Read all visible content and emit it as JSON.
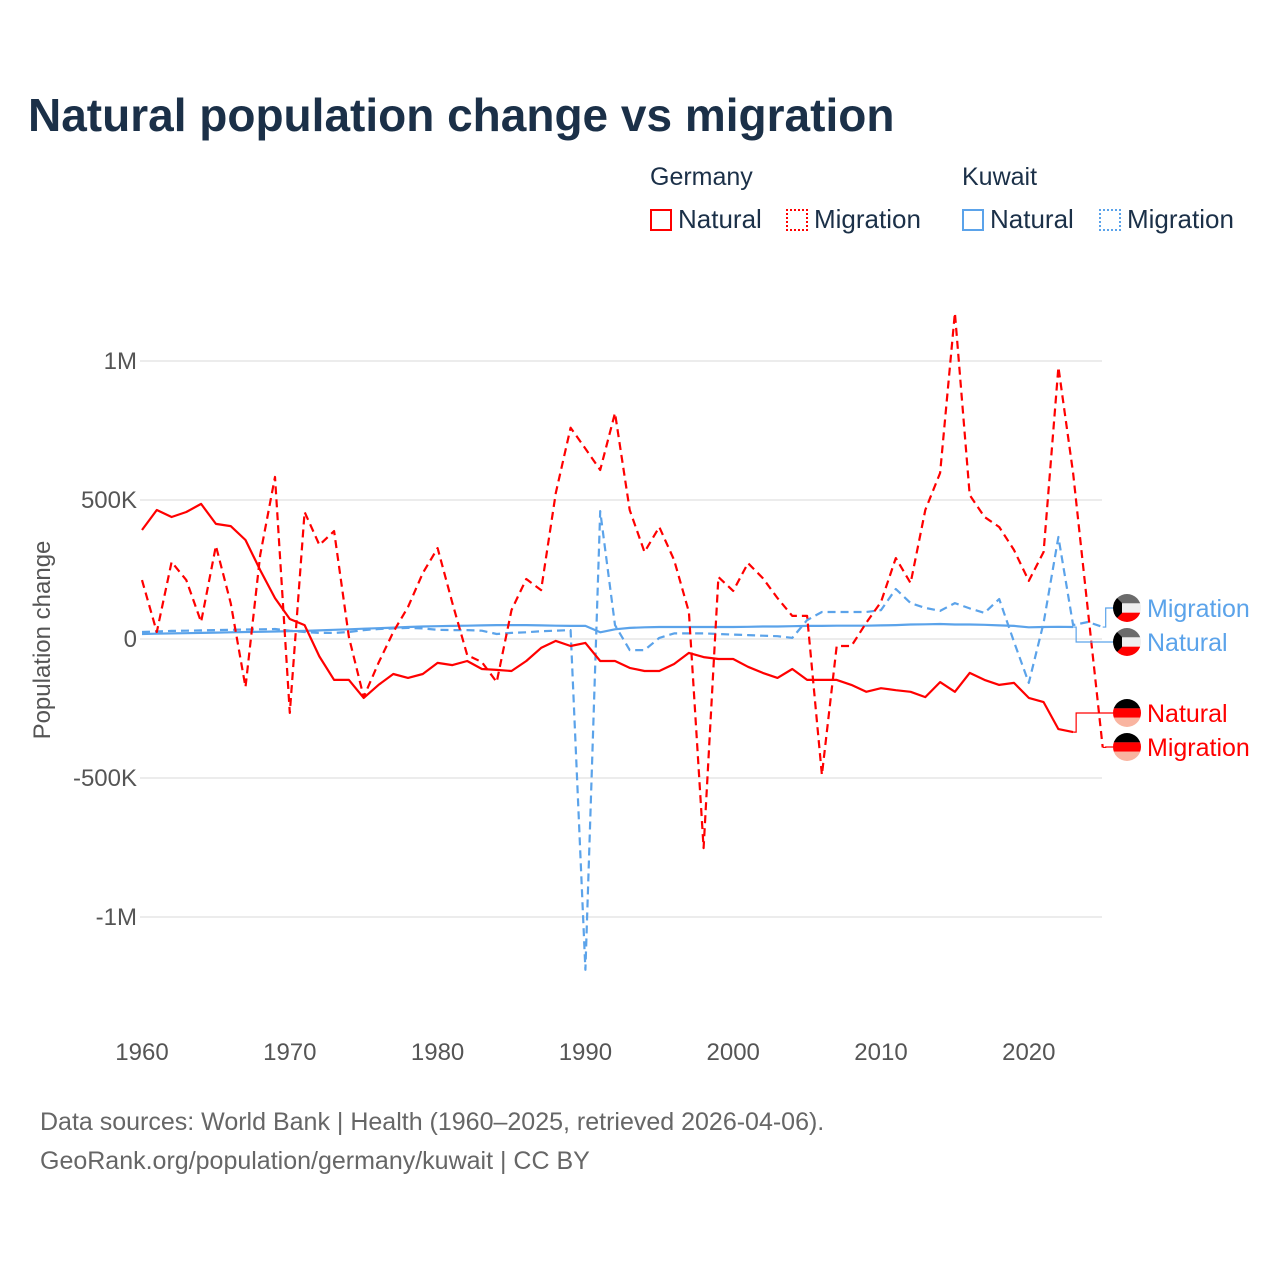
{
  "title": "Natural population change vs migration",
  "legend": {
    "groups": [
      {
        "name": "Germany",
        "natural": "Natural",
        "migration": "Migration",
        "color": "#ff0000"
      },
      {
        "name": "Kuwait",
        "natural": "Natural",
        "migration": "Migration",
        "color": "#5ba3ea"
      }
    ]
  },
  "footer": {
    "line1": "Data sources: World Bank | Health (1960–2025, retrieved 2026-04-06).",
    "line2": "GeoRank.org/population/germany/kuwait | CC BY"
  },
  "chart_data": {
    "type": "line",
    "title": "Natural population change vs migration",
    "xlabel": "",
    "ylabel": "Population change",
    "xlim": [
      1960,
      2025
    ],
    "ylim": [
      -1200000,
      1200000
    ],
    "x_ticks": [
      1960,
      1970,
      1980,
      1990,
      2000,
      2010,
      2020
    ],
    "x_tick_labels": [
      "1960",
      "1970",
      "1980",
      "1990",
      "2000",
      "2010",
      "2020"
    ],
    "y_ticks": [
      1000000,
      500000,
      0,
      -500000,
      -1000000
    ],
    "y_tick_labels": [
      "1M",
      "500K",
      "0",
      "-500K",
      "-1M"
    ],
    "grid": true,
    "legend_placement": "top-right",
    "units": "thousands",
    "series": [
      {
        "name": "Germany Natural",
        "label": "Natural",
        "country": "Germany",
        "color": "#ff0000",
        "dash": false,
        "start": 1960,
        "values": [
          392,
          464,
          439,
          457,
          486,
          414,
          406,
          356,
          248,
          147,
          72,
          50,
          -63,
          -147,
          -147,
          -212,
          -165,
          -126,
          -140,
          -126,
          -86,
          -94,
          -79,
          -108,
          -111,
          -115,
          -79,
          -32,
          -7,
          -25,
          -14,
          -79,
          -79,
          -104,
          -115,
          -115,
          -90,
          -50,
          -65,
          -72,
          -72,
          -100,
          -122,
          -140,
          -108,
          -147,
          -147,
          -147,
          -165,
          -190,
          -177,
          -184,
          -190,
          -209,
          -155,
          -190,
          -122,
          -147,
          -165,
          -158,
          -212,
          -227,
          -324,
          -335
        ]
      },
      {
        "name": "Germany Migration",
        "label": "Migration",
        "country": "Germany",
        "color": "#ff0000",
        "dash": true,
        "start": 1960,
        "values": [
          212,
          25,
          277,
          212,
          61,
          335,
          129,
          -173,
          302,
          583,
          -266,
          457,
          338,
          388,
          7,
          -209,
          -86,
          25,
          115,
          237,
          327,
          129,
          -58,
          -83,
          -155,
          104,
          216,
          176,
          525,
          760,
          685,
          608,
          813,
          464,
          313,
          403,
          284,
          97,
          -752,
          223,
          173,
          273,
          219,
          147,
          83,
          83,
          -489,
          -25,
          -25,
          58,
          133,
          291,
          201,
          464,
          597,
          1173,
          518,
          439,
          403,
          320,
          209,
          313,
          978,
          597,
          103,
          -390
        ]
      },
      {
        "name": "Kuwait Natural",
        "label": "Natural",
        "country": "Kuwait",
        "color": "#5ba3ea",
        "dash": false,
        "start": 1960,
        "values": [
          18,
          19,
          20,
          21,
          22,
          23,
          24,
          25,
          26,
          27,
          28,
          29,
          31,
          33,
          35,
          37,
          39,
          41,
          43,
          45,
          46,
          47,
          48,
          49,
          50,
          50,
          50,
          49,
          48,
          47,
          47,
          24,
          35,
          40,
          42,
          43,
          43,
          43,
          43,
          43,
          43,
          44,
          45,
          45,
          46,
          47,
          47,
          48,
          48,
          48,
          49,
          50,
          52,
          53,
          54,
          52,
          52,
          51,
          49,
          47,
          42,
          43,
          44,
          43
        ]
      },
      {
        "name": "Kuwait Migration",
        "label": "Migration",
        "country": "Kuwait",
        "color": "#5ba3ea",
        "dash": true,
        "start": 1960,
        "values": [
          25,
          27,
          29,
          30,
          31,
          32,
          33,
          34,
          35,
          36,
          30,
          25,
          22,
          22,
          25,
          32,
          36,
          38,
          40,
          38,
          33,
          32,
          32,
          30,
          18,
          22,
          24,
          28,
          30,
          32,
          -1190,
          460,
          50,
          -40,
          -40,
          4,
          20,
          20,
          20,
          18,
          16,
          14,
          12,
          10,
          4,
          68,
          97,
          97,
          97,
          97,
          104,
          180,
          129,
          112,
          101,
          129,
          110,
          94,
          144,
          -10,
          -158,
          58,
          367,
          50,
          61,
          43
        ]
      }
    ]
  }
}
